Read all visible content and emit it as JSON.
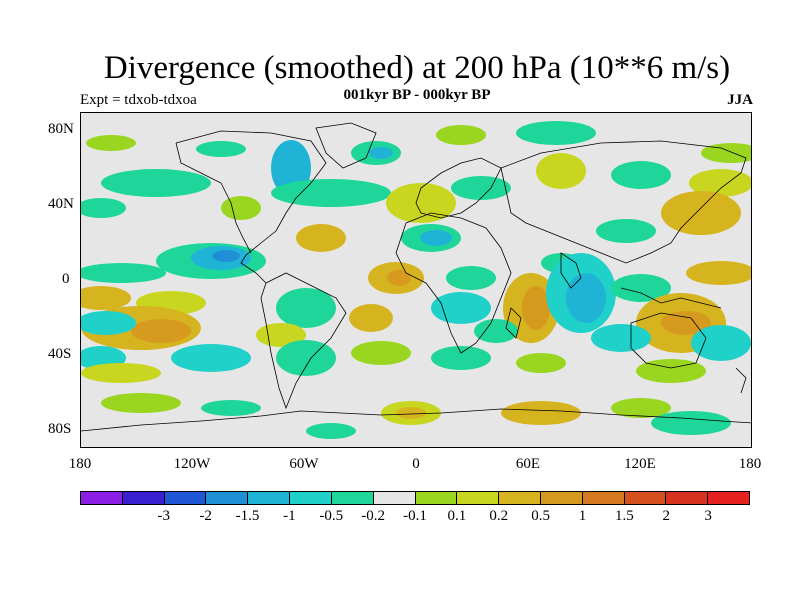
{
  "title": "Divergence (smoothed) at 200 hPa (10**6 m/s)",
  "left_label": "Expt = tdxob-tdxoa",
  "center_label": "001kyr BP - 000kyr BP",
  "right_label": "JJA",
  "y_ticks": [
    "80N",
    "40N",
    "0",
    "40S",
    "80S"
  ],
  "x_ticks": [
    "180",
    "120W",
    "60W",
    "0",
    "60E",
    "120E",
    "180"
  ],
  "colorbar": {
    "colors": [
      "#8c1fe6",
      "#3a1fd1",
      "#1f57d6",
      "#1f8fd6",
      "#1fb4d6",
      "#1fd1c8",
      "#1fd69a",
      "#e6e6e6",
      "#9ad61f",
      "#c8d61f",
      "#d6b41f",
      "#d69a1f",
      "#d6781f",
      "#d6501f",
      "#d6321f",
      "#e61f1f"
    ],
    "labels": [
      "-3",
      "-2",
      "-1.5",
      "-1",
      "-0.5",
      "-0.2",
      "-0.1",
      "0.1",
      "0.2",
      "0.5",
      "1",
      "1.5",
      "2",
      "3"
    ]
  },
  "map_colors": {
    "ocean": "#e6e6e6",
    "coast": "#000000"
  }
}
